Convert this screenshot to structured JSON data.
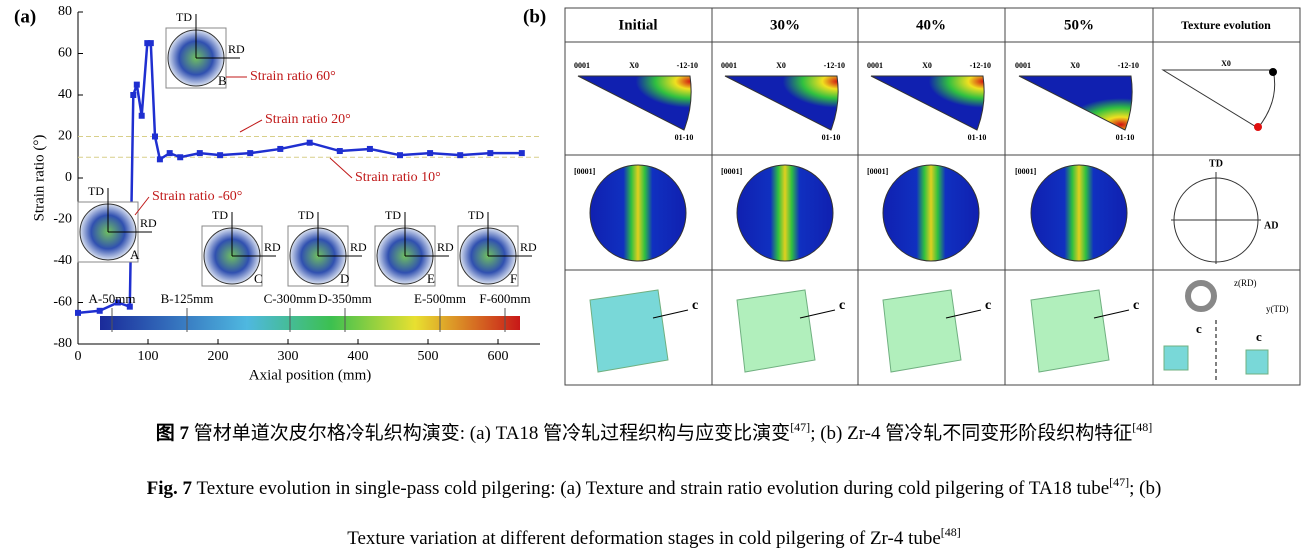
{
  "chart_data": {
    "type": "line",
    "panel_label": "(a)",
    "ylabel": "Strain ratio (°)",
    "xlabel": "Axial position (mm)",
    "x": [
      0,
      31,
      57,
      74,
      79,
      84,
      91,
      99,
      104,
      110,
      117,
      131,
      146,
      174,
      203,
      246,
      289,
      331,
      374,
      417,
      460,
      503,
      546,
      589,
      634
    ],
    "values": [
      -65,
      -64,
      -60,
      -62,
      40,
      45,
      30,
      65,
      65,
      20,
      9,
      12,
      10,
      12,
      11,
      12,
      14,
      17,
      13,
      14,
      11,
      12,
      11,
      12,
      12
    ],
    "color": "#1f2fd0",
    "xlim": [
      0,
      660
    ],
    "ylim": [
      -80,
      80
    ],
    "xticks": [
      0,
      100,
      200,
      300,
      400,
      500,
      600
    ],
    "yticks": [
      -80,
      -60,
      -40,
      -20,
      0,
      20,
      40,
      60,
      80
    ],
    "ref_lines": [
      20,
      10
    ],
    "ref_color": "#d8cf8a",
    "annotations": [
      "Strain ratio 60°",
      "Strain ratio 20°",
      "Strain ratio 10°",
      "Strain ratio -60°"
    ],
    "position_labels": [
      "A-50mm",
      "B-125mm",
      "C-300mm",
      "D-350mm",
      "E-500mm",
      "F-600mm"
    ],
    "insets": [
      "A",
      "B",
      "C",
      "D",
      "E",
      "F"
    ],
    "inset_axes": {
      "td": "TD",
      "rd": "RD"
    }
  },
  "panel_b": {
    "label": "(b)",
    "headers": [
      "Initial",
      "30%",
      "40%",
      "50%",
      "Texture evolution"
    ],
    "ipf_labels": [
      "0001",
      "X0",
      "-12-10",
      "01-10"
    ],
    "pf_label": "[0001]",
    "evolution": {
      "td": "TD",
      "ad": "AD",
      "c": "c",
      "z": "z(RD)",
      "y": "y(TD)"
    }
  },
  "caption": {
    "zh": [
      "图 7",
      " 管材单道次皮尔格冷轧织构演变: (a) TA18 管冷轧过程织构与应变比演变",
      "[47]",
      "; (b) Zr-4 管冷轧不同变形阶段织构特征",
      "[48]"
    ],
    "en": [
      "Fig. 7",
      " Texture evolution in single-pass cold pilgering: (a) Texture and strain ratio evolution during cold pilgering of TA18 tube",
      "[47]",
      "; (b)",
      "Texture variation at different deformation stages in cold pilgering of Zr-4 tube",
      "[48]"
    ]
  }
}
